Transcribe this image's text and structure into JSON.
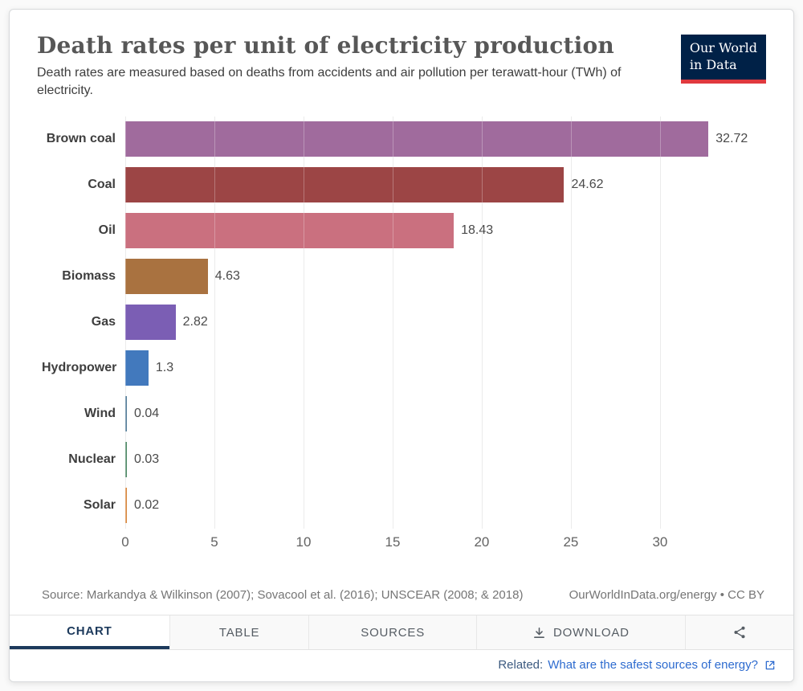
{
  "header": {
    "title": "Death rates per unit of electricity production",
    "subtitle": "Death rates are measured based on deaths from accidents and air pollution per terawatt-hour (TWh) of electricity.",
    "logo": {
      "line1": "Our World",
      "line2": "in Data"
    }
  },
  "chart_data": {
    "type": "bar",
    "orientation": "horizontal",
    "title": "Death rates per unit of electricity production",
    "categories": [
      "Brown coal",
      "Coal",
      "Oil",
      "Biomass",
      "Gas",
      "Hydropower",
      "Wind",
      "Nuclear",
      "Solar"
    ],
    "values": [
      32.72,
      24.62,
      18.43,
      4.63,
      2.82,
      1.3,
      0.04,
      0.03,
      0.02
    ],
    "value_labels": [
      "32.72",
      "24.62",
      "18.43",
      "4.63",
      "2.82",
      "1.3",
      "0.04",
      "0.03",
      "0.02"
    ],
    "bar_colors": [
      "#a06b9d",
      "#9c4545",
      "#ca707f",
      "#a97240",
      "#7b5eb4",
      "#4279bd",
      "#577f9a",
      "#4f8a67",
      "#d7873f"
    ],
    "x_ticks": [
      0,
      5,
      10,
      15,
      20,
      25,
      30
    ],
    "x_max": 35.5,
    "xlabel": "",
    "ylabel": "",
    "grid": true,
    "legend": false
  },
  "footer": {
    "source": "Source: Markandya & Wilkinson (2007); Sovacool et al. (2016); UNSCEAR (2008; & 2018)",
    "attribution": "OurWorldInData.org/energy • CC BY"
  },
  "tabs": {
    "chart": "CHART",
    "table": "TABLE",
    "sources": "SOURCES",
    "download": "DOWNLOAD"
  },
  "related": {
    "prefix": "Related:",
    "link": "What are the safest sources of energy?"
  },
  "icons": {
    "download": "⤓",
    "share": "share-nodes",
    "external_link": "⧉"
  },
  "colors": {
    "accent_navy": "#002147",
    "logo_red": "#e0393e",
    "link_blue": "#2d6bcf",
    "active_tab": "#1d3a5c"
  }
}
